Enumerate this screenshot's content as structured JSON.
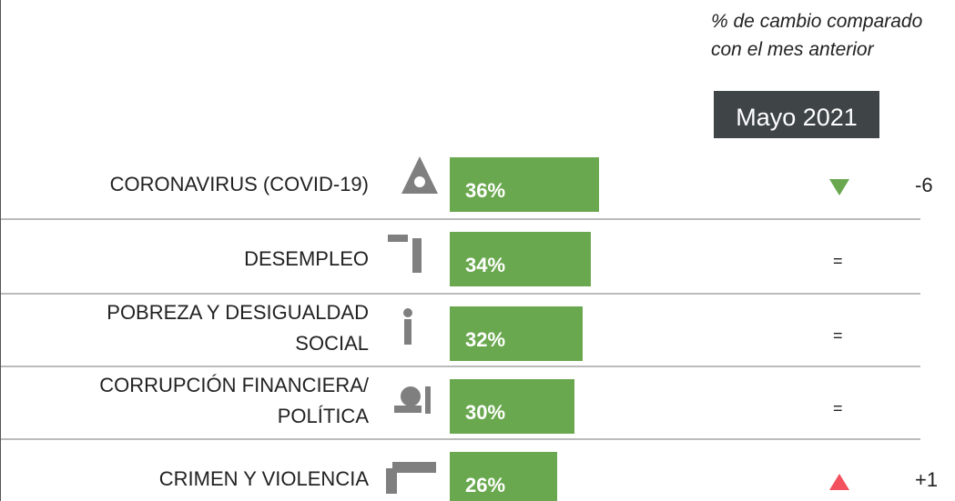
{
  "chart_data": {
    "type": "bar",
    "orientation": "horizontal",
    "title": "% de cambio comparado con el mes anterior",
    "period": "Mayo 2021",
    "categories": [
      "CORONAVIRUS (COVID-19)",
      "DESEMPLEO",
      "POBREZA Y DESIGUALDAD\nSOCIAL",
      "CORRUPCIÓN FINANCIERA/\nPOLÍTICA",
      "CRIMEN Y VIOLENCIA"
    ],
    "values": [
      36,
      34,
      32,
      30,
      26
    ],
    "value_labels": [
      "36%",
      "34%",
      "32%",
      "30%",
      "26%"
    ],
    "color": "#6aa84f",
    "change_labels": [
      "-6",
      "=",
      "=",
      "=",
      "+1"
    ],
    "change_arrows": [
      "down",
      null,
      null,
      null,
      "up"
    ],
    "arrow_colors": {
      "down": "#6aa84f",
      "up": "#f4515e"
    }
  }
}
